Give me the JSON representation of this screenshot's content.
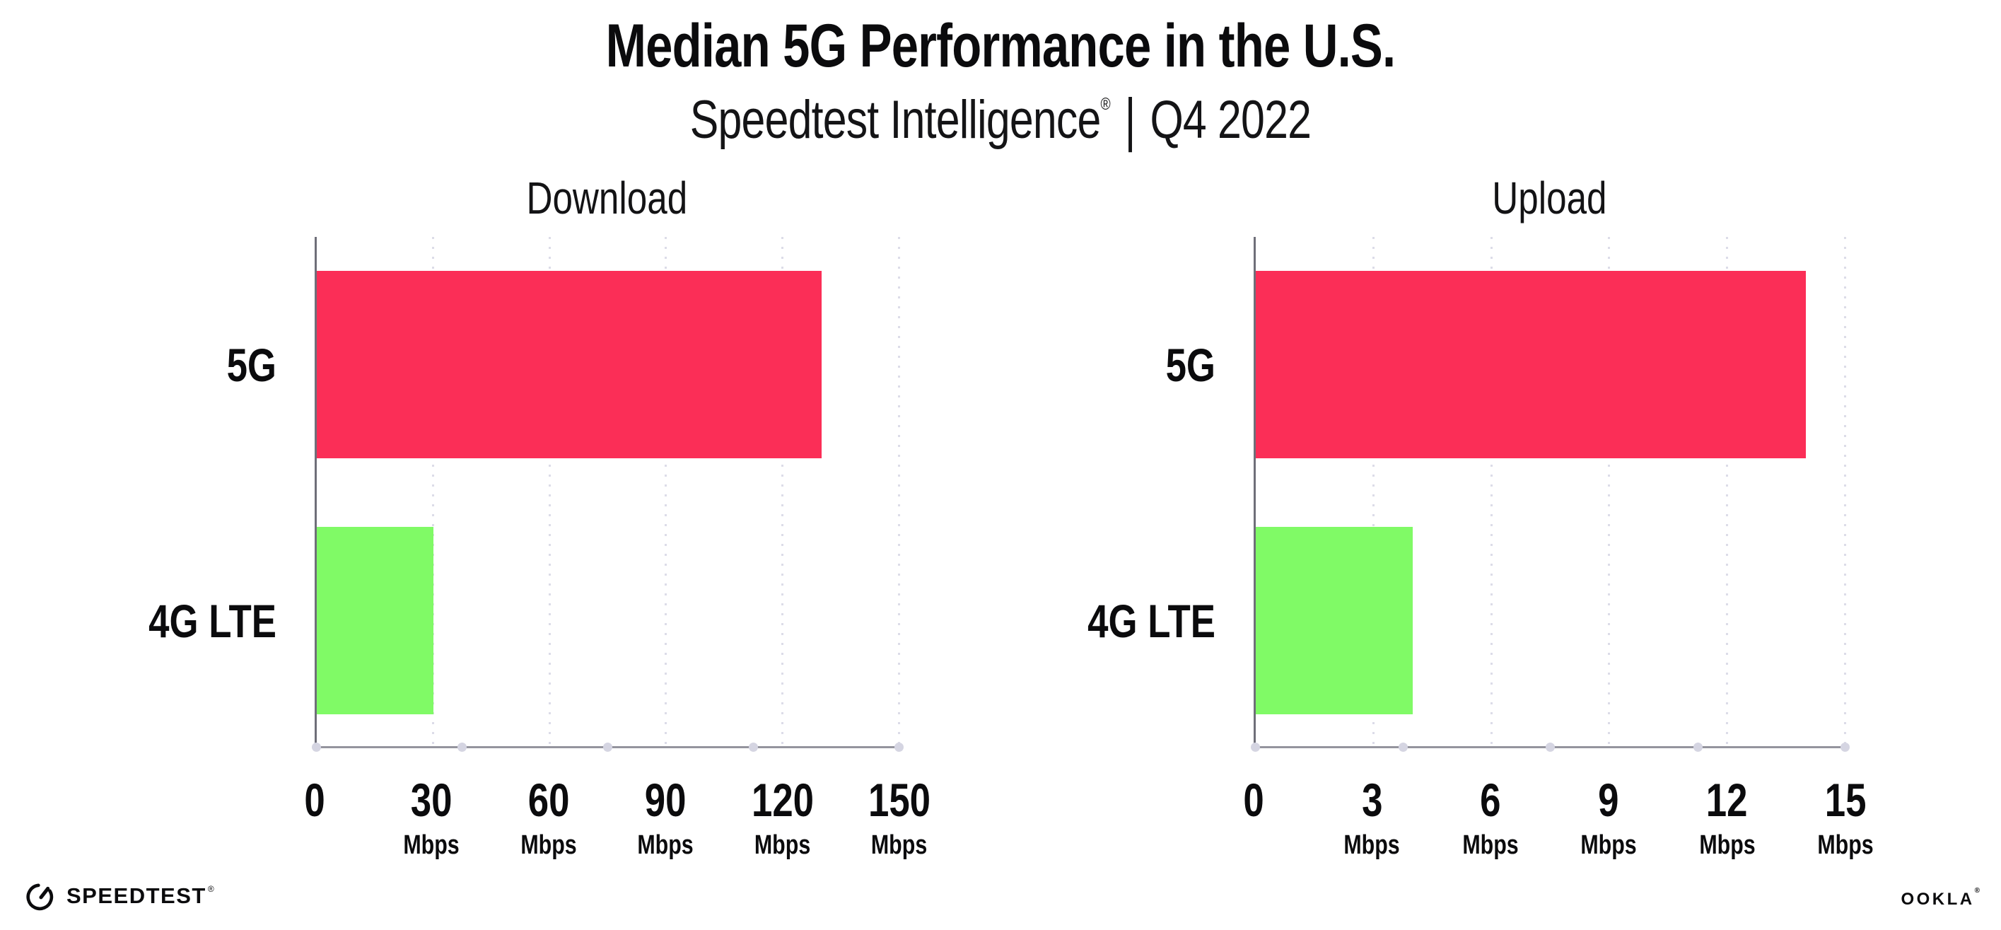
{
  "header": {
    "title": "Median 5G Performance in the U.S.",
    "subtitle": {
      "brand": "Speedtest Intelligence",
      "registered": "®",
      "separator": "|",
      "period": "Q4 2022"
    }
  },
  "chart_data": [
    {
      "type": "bar",
      "orientation": "horizontal",
      "title": "Download",
      "categories": [
        "5G",
        "4G LTE"
      ],
      "values": [
        130,
        30
      ],
      "value_unit": "Mbps",
      "xlim": [
        0,
        150
      ],
      "xticks": [
        0,
        30,
        60,
        90,
        120,
        150
      ],
      "xtick_unit": "Mbps",
      "bar_colors": [
        "#fb2e57",
        "#80fa66"
      ],
      "grid": "dotted-vertical",
      "legend": "none"
    },
    {
      "type": "bar",
      "orientation": "horizontal",
      "title": "Upload",
      "categories": [
        "5G",
        "4G LTE"
      ],
      "values": [
        14,
        4
      ],
      "value_unit": "Mbps",
      "xlim": [
        0,
        15
      ],
      "xticks": [
        0,
        3,
        6,
        9,
        12,
        15
      ],
      "xtick_unit": "Mbps",
      "bar_colors": [
        "#fb2e57",
        "#80fa66"
      ],
      "grid": "dotted-vertical",
      "legend": "none"
    }
  ],
  "footer": {
    "speedtest": {
      "label": "SPEEDTEST",
      "mark": "®"
    },
    "ookla": {
      "label": "OOKLA",
      "mark": "®"
    }
  },
  "style": {
    "bar_pink": "#fb2e57",
    "bar_green": "#80fa66",
    "grid_dot_color": "#dcdce8",
    "axis_line_color": "#94949e",
    "yaxis_line_color": "#6f6f79",
    "axis_marker_color": "#d5d5e2",
    "text_color": "#0b0b0d",
    "background": "#ffffff"
  }
}
